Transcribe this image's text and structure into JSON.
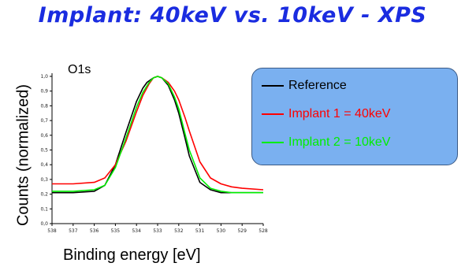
{
  "title": "Implant: 40keV vs. 10keV - XPS",
  "chart_data": {
    "type": "line",
    "annotation": "O1s",
    "xlabel": "Binding energy [eV]",
    "ylabel": "Counts (normalized)",
    "xlim": [
      538,
      528
    ],
    "ylim": [
      0.0,
      1.0
    ],
    "x_reversed": true,
    "x_ticks": [
      "538",
      "537",
      "536",
      "535",
      "534",
      "533",
      "532",
      "531",
      "530",
      "529",
      "528"
    ],
    "y_ticks": [
      "0,0",
      "0,1",
      "0,2",
      "0,3",
      "0,4",
      "0,5",
      "0,6",
      "0,7",
      "0,8",
      "0,9",
      "1,0"
    ],
    "grid": false,
    "legend_position": "right",
    "series": [
      {
        "name": "Reference",
        "color": "#000000",
        "x": [
          538,
          537,
          536,
          535.5,
          535,
          534.5,
          534,
          533.7,
          533.5,
          533.2,
          533,
          532.8,
          532.5,
          532.2,
          532,
          531.7,
          531.5,
          531,
          530.5,
          530,
          529.5,
          529,
          528
        ],
        "y": [
          0.21,
          0.21,
          0.22,
          0.26,
          0.4,
          0.62,
          0.83,
          0.92,
          0.96,
          0.99,
          1.0,
          0.99,
          0.94,
          0.84,
          0.75,
          0.58,
          0.46,
          0.28,
          0.23,
          0.21,
          0.21,
          0.21,
          0.21
        ]
      },
      {
        "name": "Implant 1 = 40keV",
        "color": "#ff0000",
        "x": [
          538,
          537,
          536,
          535.5,
          535,
          534.5,
          534,
          533.7,
          533.4,
          533.2,
          533,
          532.8,
          532.5,
          532.2,
          532,
          531.7,
          531.5,
          531,
          530.5,
          530,
          529.5,
          529,
          528
        ],
        "y": [
          0.27,
          0.27,
          0.28,
          0.31,
          0.4,
          0.56,
          0.76,
          0.87,
          0.95,
          0.99,
          1.0,
          0.99,
          0.96,
          0.9,
          0.84,
          0.72,
          0.63,
          0.42,
          0.31,
          0.27,
          0.25,
          0.24,
          0.23
        ]
      },
      {
        "name": "Implant 2 = 10keV",
        "color": "#00ee00",
        "x": [
          538,
          537,
          536,
          535.5,
          535,
          534.5,
          534,
          533.7,
          533.4,
          533.2,
          533,
          532.8,
          532.5,
          532.2,
          532,
          531.7,
          531.5,
          531,
          530.5,
          530,
          529.5,
          529,
          528
        ],
        "y": [
          0.22,
          0.22,
          0.23,
          0.26,
          0.38,
          0.58,
          0.79,
          0.89,
          0.96,
          0.99,
          1.0,
          0.99,
          0.95,
          0.86,
          0.78,
          0.61,
          0.5,
          0.31,
          0.24,
          0.22,
          0.21,
          0.21,
          0.21
        ]
      }
    ]
  }
}
